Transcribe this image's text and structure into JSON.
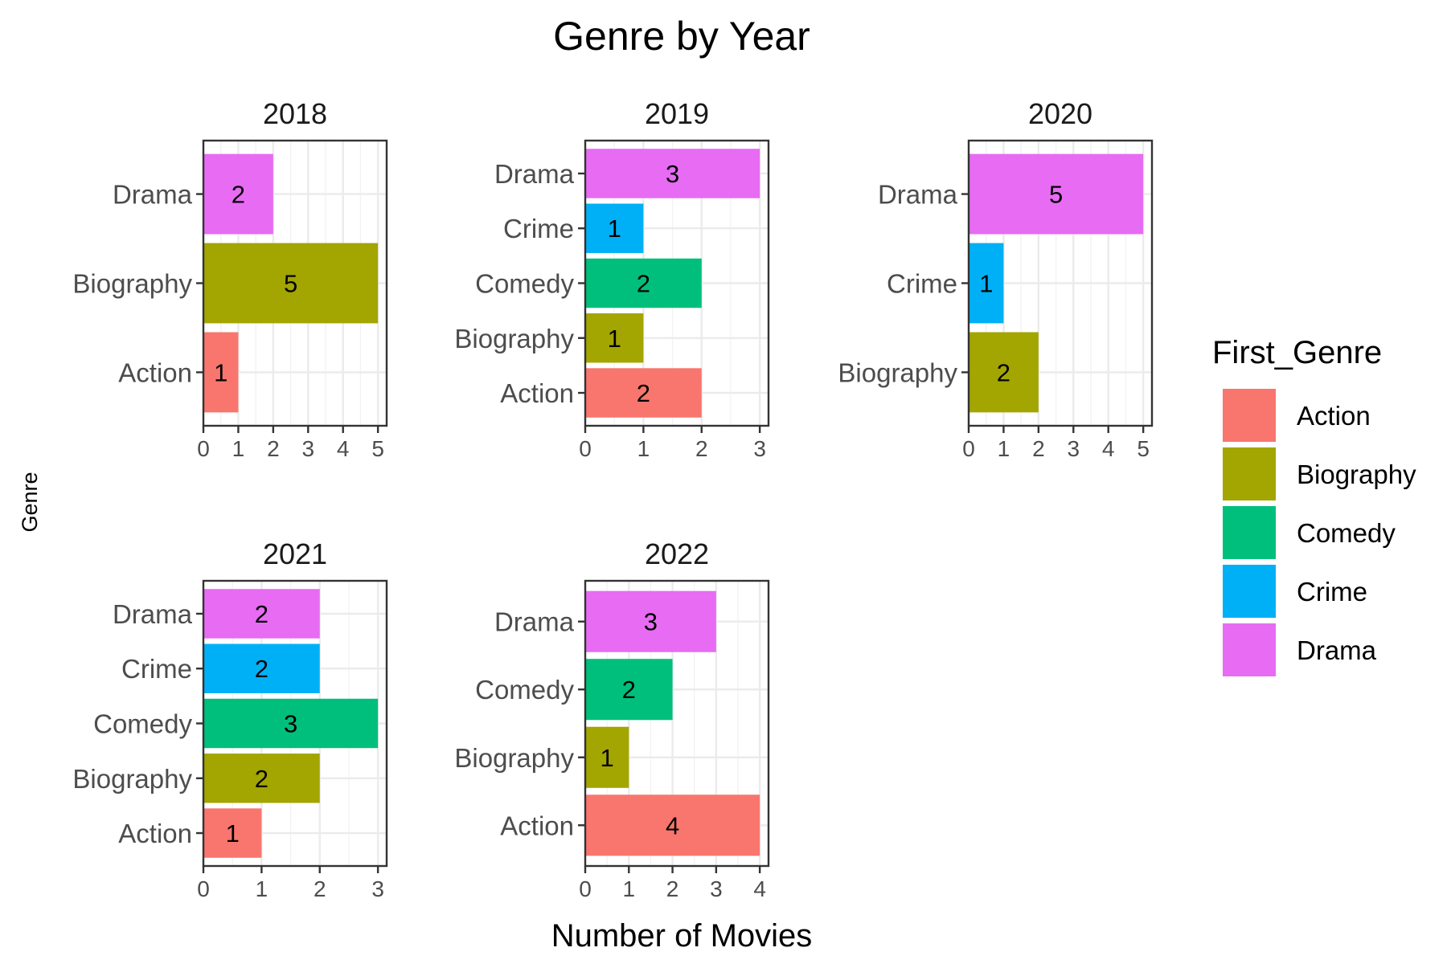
{
  "chart_data": {
    "type": "bar",
    "title": "Genre by Year",
    "xlabel": "Number of Movies",
    "ylabel": "Genre",
    "legend": {
      "title": "First_Genre",
      "position": "right",
      "entries": [
        {
          "name": "Action",
          "color": "#F8766D"
        },
        {
          "name": "Biography",
          "color": "#A3A500"
        },
        {
          "name": "Comedy",
          "color": "#00BF7D"
        },
        {
          "name": "Crime",
          "color": "#00B0F6"
        },
        {
          "name": "Drama",
          "color": "#E76BF3"
        }
      ]
    },
    "grid": true,
    "facets": [
      {
        "label": "2018",
        "xlim": [
          0,
          5.25
        ],
        "xticks": [
          0,
          1,
          2,
          3,
          4,
          5
        ],
        "bars": [
          {
            "category": "Action",
            "value": 1
          },
          {
            "category": "Biography",
            "value": 5
          },
          {
            "category": "Drama",
            "value": 2
          }
        ]
      },
      {
        "label": "2019",
        "xlim": [
          0,
          3.15
        ],
        "xticks": [
          0,
          1,
          2,
          3
        ],
        "bars": [
          {
            "category": "Action",
            "value": 2
          },
          {
            "category": "Biography",
            "value": 1
          },
          {
            "category": "Comedy",
            "value": 2
          },
          {
            "category": "Crime",
            "value": 1
          },
          {
            "category": "Drama",
            "value": 3
          }
        ]
      },
      {
        "label": "2020",
        "xlim": [
          0,
          5.25
        ],
        "xticks": [
          0,
          1,
          2,
          3,
          4,
          5
        ],
        "bars": [
          {
            "category": "Biography",
            "value": 2
          },
          {
            "category": "Crime",
            "value": 1
          },
          {
            "category": "Drama",
            "value": 5
          }
        ]
      },
      {
        "label": "2021",
        "xlim": [
          0,
          3.15
        ],
        "xticks": [
          0,
          1,
          2,
          3
        ],
        "bars": [
          {
            "category": "Action",
            "value": 1
          },
          {
            "category": "Biography",
            "value": 2
          },
          {
            "category": "Comedy",
            "value": 3
          },
          {
            "category": "Crime",
            "value": 2
          },
          {
            "category": "Drama",
            "value": 2
          }
        ]
      },
      {
        "label": "2022",
        "xlim": [
          0,
          4.2
        ],
        "xticks": [
          0,
          1,
          2,
          3,
          4
        ],
        "bars": [
          {
            "category": "Action",
            "value": 4
          },
          {
            "category": "Biography",
            "value": 1
          },
          {
            "category": "Comedy",
            "value": 2
          },
          {
            "category": "Drama",
            "value": 3
          }
        ]
      }
    ]
  }
}
